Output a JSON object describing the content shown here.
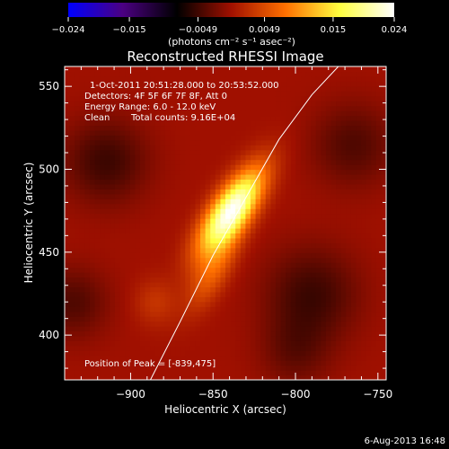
{
  "chart_data": {
    "type": "heatmap",
    "title": "Reconstructed RHESSI Image",
    "xlabel": "Heliocentric X (arcsec)",
    "ylabel": "Heliocentric Y (arcsec)",
    "xlim": [
      -940,
      -745
    ],
    "ylim": [
      373,
      562
    ],
    "xticks": [
      -900,
      -850,
      -800,
      -750
    ],
    "yticks": [
      400,
      450,
      500,
      550
    ],
    "xtick_labels": [
      "−900",
      "−850",
      "−800",
      "−750"
    ],
    "ytick_labels": [
      "400",
      "450",
      "500",
      "550"
    ],
    "colorbar": {
      "label": "(photons cm⁻² s⁻¹ asec⁻²)",
      "min": -0.024,
      "max": 0.024,
      "ticks": [
        -0.024,
        -0.015,
        -0.0049,
        0.0049,
        0.015,
        0.024
      ],
      "tick_labels": [
        "−0.024",
        "−0.015",
        "−0.0049",
        "0.0049",
        "0.015",
        "0.024"
      ],
      "colormap_stops": [
        "#0000ff",
        "#4b0082",
        "#000000",
        "#a01000",
        "#ff7000",
        "#ffff40",
        "#ffffff"
      ]
    },
    "peak": {
      "x": -839,
      "y": 475,
      "value": 0.024
    },
    "sources": [
      {
        "x": -839,
        "y": 475,
        "sx": 8,
        "sy": 21,
        "angle_deg": -35,
        "amp": 0.024
      },
      {
        "x": -850,
        "y": 438,
        "sx": 7,
        "sy": 18,
        "angle_deg": -30,
        "amp": 0.006
      },
      {
        "x": -885,
        "y": 420,
        "sx": 9,
        "sy": 10,
        "angle_deg": 0,
        "amp": 0.003
      }
    ],
    "background": [
      {
        "x": -915,
        "y": 505,
        "s": 18,
        "amp": -0.005
      },
      {
        "x": -790,
        "y": 425,
        "s": 20,
        "amp": -0.005
      },
      {
        "x": -935,
        "y": 420,
        "s": 15,
        "amp": -0.004
      },
      {
        "x": -765,
        "y": 515,
        "s": 18,
        "amp": -0.004
      },
      {
        "x": -800,
        "y": 390,
        "s": 15,
        "amp": -0.003
      }
    ],
    "limb_line": [
      {
        "x": -888,
        "y": 373
      },
      {
        "x": -870,
        "y": 408
      },
      {
        "x": -850,
        "y": 448
      },
      {
        "x": -830,
        "y": 483
      },
      {
        "x": -810,
        "y": 518
      },
      {
        "x": -790,
        "y": 545
      },
      {
        "x": -774,
        "y": 562
      }
    ],
    "info": {
      "time_range": "1-Oct-2011 20:51:28.000 to 20:53:52.000",
      "detectors": "Detectors: 4F 5F 6F 7F 8F, Att 0",
      "energy": "Energy Range: 6.0 - 12.0 keV",
      "algorithm": "Clean",
      "counts": "Total counts: 9.16E+04",
      "peak_text": "Position of Peak = [-839,475]"
    },
    "footer_date": "6-Aug-2013 16:48"
  }
}
